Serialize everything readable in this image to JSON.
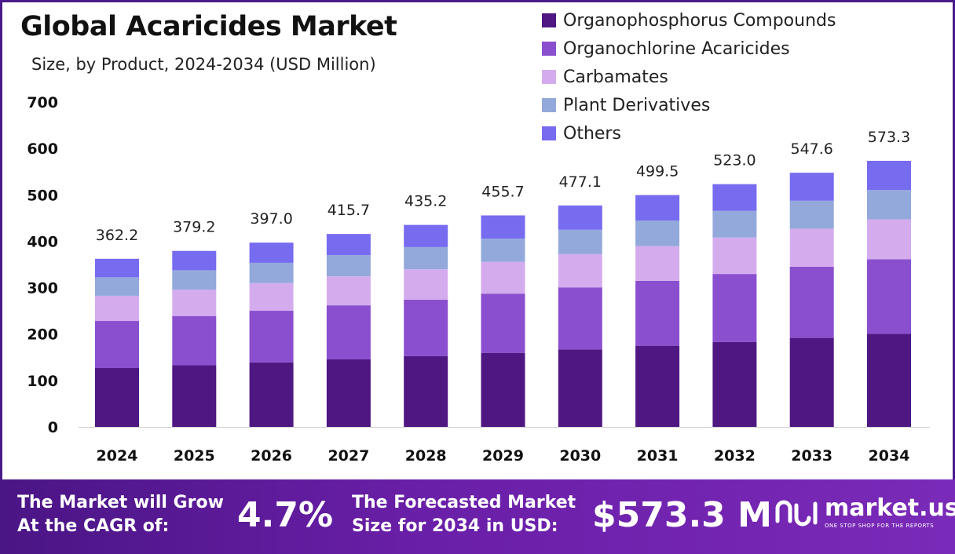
{
  "header": {
    "title": "Global Acaricides Market",
    "subtitle": "Size, by Product, 2024-2034 (USD Million)"
  },
  "chart_data": {
    "type": "bar",
    "stacked": true,
    "categories": [
      "2024",
      "2025",
      "2026",
      "2027",
      "2028",
      "2029",
      "2030",
      "2031",
      "2032",
      "2033",
      "2034"
    ],
    "series": [
      {
        "name": "Organophosphorus Compounds",
        "color": "#4e1782",
        "values": [
          126.8,
          132.7,
          139.0,
          145.5,
          152.3,
          159.5,
          167.0,
          174.8,
          183.1,
          191.7,
          200.7
        ]
      },
      {
        "name": "Organochlorine Acaricides",
        "color": "#8a4fcf",
        "values": [
          101.4,
          106.2,
          111.2,
          116.4,
          121.9,
          127.6,
          133.6,
          139.9,
          146.4,
          153.3,
          160.5
        ]
      },
      {
        "name": "Carbamates",
        "color": "#d4acee",
        "values": [
          54.3,
          56.9,
          59.6,
          62.4,
          65.3,
          68.4,
          71.6,
          74.9,
          78.5,
          82.1,
          86.0
        ]
      },
      {
        "name": "Plant Derivatives",
        "color": "#93a9db",
        "values": [
          39.8,
          41.7,
          43.7,
          45.7,
          47.9,
          50.1,
          52.5,
          54.9,
          57.5,
          60.2,
          63.1
        ]
      },
      {
        "name": "Others",
        "color": "#776bf0",
        "values": [
          39.9,
          41.7,
          43.5,
          45.7,
          47.8,
          50.1,
          52.4,
          55.0,
          57.5,
          60.3,
          63.0
        ]
      }
    ],
    "totals": [
      "362.2",
      "379.2",
      "397.0",
      "415.7",
      "435.2",
      "455.7",
      "477.1",
      "499.5",
      "523.0",
      "547.6",
      "573.3"
    ],
    "y_ticks": [
      "0",
      "100",
      "200",
      "300",
      "400",
      "500",
      "600",
      "700"
    ],
    "ylim": [
      0,
      700
    ],
    "legend_position": "top-right",
    "grid": false
  },
  "footer": {
    "cagr_label_line1": "The Market will Grow",
    "cagr_label_line2": "At the CAGR of:",
    "cagr_value": "4.7%",
    "forecast_label_line1": "The Forecasted Market",
    "forecast_label_line2": "Size for 2034 in USD:",
    "forecast_value": "$573.3 M",
    "logo_name": "market.us",
    "logo_tagline": "ONE STOP SHOP FOR THE REPORTS"
  }
}
